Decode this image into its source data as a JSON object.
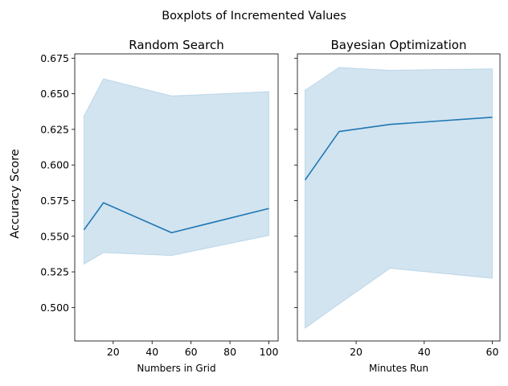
{
  "figure": {
    "suptitle": "Boxplots of Incremented Values",
    "ylabel": "Accuracy Score"
  },
  "colors": {
    "line": "#1f77b4",
    "band": "#1f77b4",
    "axes": "#000000",
    "background": "#ffffff"
  },
  "chart_data": [
    {
      "type": "line",
      "title": "Random Search",
      "xlabel": "Numbers in Grid",
      "ylabel": "Accuracy Score",
      "x": [
        5,
        15,
        50,
        100
      ],
      "series": [
        {
          "values": [
            0.5545,
            0.5735,
            0.5525,
            0.5695
          ],
          "lower": [
            0.5305,
            0.5385,
            0.5365,
            0.5505
          ],
          "upper": [
            0.6345,
            0.6605,
            0.6485,
            0.6515
          ]
        }
      ],
      "xlim": [
        0.25,
        104.75
      ],
      "ylim": [
        0.4765,
        0.678
      ],
      "xticks": [
        20,
        40,
        60,
        80,
        100
      ],
      "xtick_labels": [
        "20",
        "40",
        "60",
        "80",
        "100"
      ],
      "yticks": [
        0.5,
        0.525,
        0.55,
        0.575,
        0.6,
        0.625,
        0.65,
        0.675
      ],
      "ytick_labels": [
        "0.500",
        "0.525",
        "0.550",
        "0.575",
        "0.600",
        "0.625",
        "0.650",
        "0.675"
      ],
      "grid": false,
      "legend": "none"
    },
    {
      "type": "line",
      "title": "Bayesian Optimization",
      "xlabel": "Minutes Run",
      "ylabel": "",
      "x": [
        5,
        15,
        30,
        60
      ],
      "series": [
        {
          "values": [
            0.5895,
            0.6235,
            0.6285,
            0.6335
          ],
          "lower": [
            0.4855,
            0.5025,
            0.5275,
            0.5205
          ],
          "upper": [
            0.6525,
            0.6685,
            0.6665,
            0.6675
          ]
        }
      ],
      "xlim": [
        2.75,
        62.25
      ],
      "ylim": [
        0.4765,
        0.678
      ],
      "xticks": [
        20,
        40,
        60
      ],
      "xtick_labels": [
        "20",
        "40",
        "60"
      ],
      "yticks": [
        0.5,
        0.525,
        0.55,
        0.575,
        0.6,
        0.625,
        0.65,
        0.675
      ],
      "ytick_labels": [],
      "shared_y": true,
      "grid": false,
      "legend": "none"
    }
  ]
}
